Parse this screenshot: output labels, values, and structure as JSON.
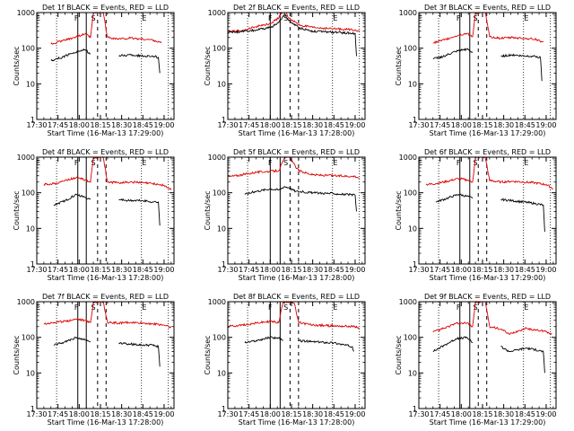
{
  "figure": {
    "x_ticks": [
      "17:30",
      "17:45",
      "18:00",
      "18:15",
      "18:30",
      "18:45",
      "19:00"
    ],
    "y_ticks": [
      "1",
      "10",
      "100",
      "1000"
    ],
    "ylabel": "Counts/sec",
    "xlabel": "Start Time (16-Mar-13 17:29:00)",
    "colors": {
      "events": "#000000",
      "lld": "#dd0000",
      "axes": "#000000"
    }
  },
  "chart_data": [
    {
      "type": "line",
      "title": "Det 1f BLACK = Events, RED = LLD",
      "ylabel": "Counts/sec",
      "xlabel": "Start Time (16-Mar-13 17:29:00)",
      "xlim": [
        "17:30",
        "19:07"
      ],
      "ylim": [
        1,
        1000
      ],
      "yscale": "log",
      "markers": [
        {
          "label": "E",
          "t": "17:31"
        },
        {
          "label": "F",
          "t": "17:58"
        },
        {
          "label": "S",
          "t": "18:10"
        },
        {
          "label": "E",
          "t": "18:46"
        }
      ],
      "solid_lines": [
        "17:59",
        "18:05"
      ],
      "dashed_lines": [
        "18:13",
        "18:19"
      ],
      "dotted_lines": [
        "17:44",
        "18:44",
        "19:03"
      ],
      "series": [
        {
          "name": "LLD",
          "x": [
            "17:40",
            "17:48",
            "17:56",
            "18:04",
            "18:08",
            "18:10",
            "18:14",
            "18:17",
            "18:20",
            "18:28",
            "18:36",
            "18:44",
            "18:52",
            "18:58"
          ],
          "values": [
            130,
            160,
            200,
            250,
            200,
            950,
            1000,
            1000,
            200,
            180,
            190,
            180,
            170,
            140
          ]
        },
        {
          "name": "Events",
          "x": [
            "17:40",
            "17:48",
            "17:56",
            "18:04",
            "18:08",
            "18:10",
            "18:14",
            "18:17",
            "18:20",
            "18:28",
            "18:36",
            "18:44",
            "18:52",
            "18:56",
            "18:57"
          ],
          "values": [
            45,
            55,
            75,
            90,
            70,
            null,
            null,
            null,
            null,
            60,
            65,
            60,
            60,
            55,
            20
          ]
        }
      ]
    },
    {
      "type": "line",
      "title": "Det 2f BLACK = Events, RED = LLD",
      "ylabel": "Counts/sec",
      "xlabel": "Start Time (16-Mar-13 17:28:00)",
      "xlim": [
        "17:30",
        "19:07"
      ],
      "ylim": [
        1,
        1000
      ],
      "yscale": "log",
      "markers": [
        {
          "label": "F",
          "t": "18:00"
        },
        {
          "label": "S",
          "t": "18:11"
        },
        {
          "label": "E",
          "t": "18:46"
        }
      ],
      "solid_lines": [
        "18:00",
        "18:07"
      ],
      "dashed_lines": [
        "18:14",
        "18:20"
      ],
      "dotted_lines": [
        "17:44",
        "18:44",
        "19:03"
      ],
      "series": [
        {
          "name": "LLD",
          "x": [
            "17:30",
            "17:40",
            "17:50",
            "18:00",
            "18:06",
            "18:10",
            "18:13",
            "18:16",
            "18:20",
            "18:30",
            "18:45",
            "19:00",
            "19:03"
          ],
          "values": [
            300,
            310,
            400,
            500,
            700,
            1400,
            700,
            600,
            450,
            380,
            350,
            330,
            300
          ]
        },
        {
          "name": "Events",
          "x": [
            "17:30",
            "17:40",
            "17:50",
            "18:00",
            "18:06",
            "18:10",
            "18:13",
            "18:16",
            "18:20",
            "18:30",
            "18:45",
            "19:00",
            "19:01"
          ],
          "values": [
            280,
            290,
            320,
            380,
            520,
            900,
            600,
            500,
            380,
            300,
            280,
            260,
            60
          ]
        }
      ]
    },
    {
      "type": "line",
      "title": "Det 3f BLACK = Events, RED = LLD",
      "ylabel": "Counts/sec",
      "xlabel": "Start Time (16-Mar-13 17:29:00)",
      "xlim": [
        "17:30",
        "19:07"
      ],
      "ylim": [
        1,
        1000
      ],
      "yscale": "log",
      "markers": [
        {
          "label": "E",
          "t": "17:31"
        },
        {
          "label": "F",
          "t": "17:58"
        },
        {
          "label": "S",
          "t": "18:10"
        },
        {
          "label": "E",
          "t": "18:46"
        }
      ],
      "solid_lines": [
        "17:59",
        "18:06"
      ],
      "dashed_lines": [
        "18:12",
        "18:18"
      ],
      "dotted_lines": [
        "17:44",
        "18:44",
        "19:03"
      ],
      "series": [
        {
          "name": "LLD",
          "x": [
            "17:40",
            "17:48",
            "17:56",
            "18:04",
            "18:08",
            "18:10",
            "18:14",
            "18:17",
            "18:20",
            "18:28",
            "18:36",
            "18:44",
            "18:52",
            "18:58"
          ],
          "values": [
            140,
            170,
            220,
            260,
            210,
            950,
            1000,
            1000,
            210,
            190,
            200,
            190,
            180,
            150
          ]
        },
        {
          "name": "Events",
          "x": [
            "17:40",
            "17:48",
            "17:56",
            "18:04",
            "18:08",
            "18:10",
            "18:14",
            "18:17",
            "18:20",
            "18:28",
            "18:36",
            "18:44",
            "18:52",
            "18:56",
            "18:57"
          ],
          "values": [
            50,
            60,
            80,
            95,
            75,
            null,
            null,
            null,
            null,
            60,
            65,
            60,
            60,
            55,
            12
          ]
        }
      ]
    },
    {
      "type": "line",
      "title": "Det 4f BLACK = Events, RED = LLD",
      "ylabel": "Counts/sec",
      "xlabel": "Start Time (16-Mar-13 17:28:00)",
      "xlim": [
        "17:30",
        "19:07"
      ],
      "ylim": [
        1,
        1000
      ],
      "yscale": "log",
      "markers": [
        {
          "label": "E",
          "t": "17:31"
        },
        {
          "label": "F",
          "t": "17:58"
        },
        {
          "label": "S",
          "t": "18:10"
        },
        {
          "label": "E",
          "t": "18:46"
        }
      ],
      "solid_lines": [
        "17:59",
        "18:05"
      ],
      "dashed_lines": [
        "18:13",
        "18:19"
      ],
      "dotted_lines": [
        "17:44",
        "18:44",
        "19:03"
      ],
      "series": [
        {
          "name": "LLD",
          "x": [
            "17:35",
            "17:42",
            "17:50",
            "17:58",
            "18:04",
            "18:08",
            "18:10",
            "18:14",
            "18:17",
            "18:20",
            "18:28",
            "18:36",
            "18:44",
            "18:52",
            "19:00",
            "19:05"
          ],
          "values": [
            170,
            180,
            220,
            270,
            230,
            200,
            950,
            1000,
            1000,
            200,
            190,
            200,
            190,
            180,
            160,
            120
          ]
        },
        {
          "name": "Events",
          "x": [
            "17:42",
            "17:50",
            "17:58",
            "18:04",
            "18:08",
            "18:10",
            "18:17",
            "18:20",
            "18:28",
            "18:36",
            "18:44",
            "18:52",
            "18:56",
            "18:57"
          ],
          "values": [
            45,
            60,
            90,
            75,
            65,
            null,
            null,
            null,
            65,
            60,
            60,
            55,
            55,
            12
          ]
        }
      ]
    },
    {
      "type": "line",
      "title": "Det 5f BLACK = Events, RED = LLD",
      "ylabel": "Counts/sec",
      "xlabel": "Start Time (16-Mar-13 17:28:00)",
      "xlim": [
        "17:30",
        "19:07"
      ],
      "ylim": [
        1,
        1000
      ],
      "yscale": "log",
      "markers": [
        {
          "label": "F",
          "t": "18:00"
        },
        {
          "label": "S",
          "t": "18:11"
        },
        {
          "label": "E",
          "t": "18:46"
        }
      ],
      "solid_lines": [
        "18:00",
        "18:07"
      ],
      "dashed_lines": [
        "18:14",
        "18:20"
      ],
      "dotted_lines": [
        "17:44",
        "18:44",
        "19:03"
      ],
      "series": [
        {
          "name": "LLD",
          "x": [
            "17:30",
            "17:40",
            "17:50",
            "18:00",
            "18:06",
            "18:10",
            "18:13",
            "18:16",
            "18:20",
            "18:30",
            "18:45",
            "19:00",
            "19:03"
          ],
          "values": [
            280,
            320,
            380,
            400,
            420,
            900,
            1100,
            700,
            420,
            320,
            300,
            290,
            260
          ]
        },
        {
          "name": "Events",
          "x": [
            "17:42",
            "17:50",
            "18:00",
            "18:06",
            "18:10",
            "18:13",
            "18:18",
            "18:30",
            "18:45",
            "19:00",
            "19:01"
          ],
          "values": [
            90,
            110,
            130,
            120,
            150,
            140,
            110,
            100,
            95,
            85,
            30
          ]
        }
      ]
    },
    {
      "type": "line",
      "title": "Det 6f BLACK = Events, RED = LLD",
      "ylabel": "Counts/sec",
      "xlabel": "Start Time (16-Mar-13 17:29:00)",
      "xlim": [
        "17:30",
        "19:07"
      ],
      "ylim": [
        1,
        1000
      ],
      "yscale": "log",
      "markers": [
        {
          "label": "E",
          "t": "17:31"
        },
        {
          "label": "F",
          "t": "17:58"
        },
        {
          "label": "S",
          "t": "18:10"
        },
        {
          "label": "E",
          "t": "18:46"
        }
      ],
      "solid_lines": [
        "17:59",
        "18:06"
      ],
      "dashed_lines": [
        "18:12",
        "18:18"
      ],
      "dotted_lines": [
        "17:44",
        "18:44",
        "19:03"
      ],
      "series": [
        {
          "name": "LLD",
          "x": [
            "17:35",
            "17:42",
            "17:50",
            "17:58",
            "18:04",
            "18:08",
            "18:10",
            "18:14",
            "18:17",
            "18:20",
            "18:28",
            "18:36",
            "18:44",
            "18:52",
            "19:00",
            "19:05"
          ],
          "values": [
            170,
            180,
            210,
            250,
            230,
            200,
            950,
            1000,
            1000,
            220,
            200,
            210,
            200,
            190,
            170,
            130
          ]
        },
        {
          "name": "Events",
          "x": [
            "17:42",
            "17:50",
            "17:58",
            "18:04",
            "18:08",
            "18:10",
            "18:17",
            "18:20",
            "18:28",
            "18:36",
            "18:44",
            "18:52",
            "18:58",
            "18:59"
          ],
          "values": [
            55,
            70,
            90,
            80,
            70,
            null,
            null,
            null,
            65,
            60,
            55,
            50,
            45,
            8
          ]
        }
      ]
    },
    {
      "type": "line",
      "title": "Det 7f BLACK = Events, RED = LLD",
      "ylabel": "Counts/sec",
      "xlabel": "Start Time (16-Mar-13 17:28:00)",
      "xlim": [
        "17:30",
        "19:07"
      ],
      "ylim": [
        1,
        1000
      ],
      "yscale": "log",
      "markers": [
        {
          "label": "E",
          "t": "17:31"
        },
        {
          "label": "F",
          "t": "17:58"
        },
        {
          "label": "S",
          "t": "18:10"
        },
        {
          "label": "E",
          "t": "18:46"
        }
      ],
      "solid_lines": [
        "17:59",
        "18:05"
      ],
      "dashed_lines": [
        "18:13",
        "18:19"
      ],
      "dotted_lines": [
        "17:44",
        "18:44",
        "19:03"
      ],
      "series": [
        {
          "name": "LLD",
          "x": [
            "17:35",
            "17:42",
            "17:50",
            "17:58",
            "18:04",
            "18:08",
            "18:10",
            "18:14",
            "18:17",
            "18:20",
            "18:28",
            "18:36",
            "18:44",
            "18:52",
            "19:00",
            "19:05"
          ],
          "values": [
            240,
            260,
            280,
            330,
            300,
            260,
            950,
            1000,
            1000,
            260,
            250,
            260,
            250,
            240,
            220,
            190
          ]
        },
        {
          "name": "Events",
          "x": [
            "17:42",
            "17:50",
            "17:58",
            "18:04",
            "18:08",
            "18:10",
            "18:17",
            "18:20",
            "18:28",
            "18:36",
            "18:44",
            "18:52",
            "18:56",
            "18:57"
          ],
          "values": [
            60,
            75,
            100,
            85,
            75,
            null,
            null,
            null,
            70,
            65,
            60,
            60,
            55,
            15
          ]
        }
      ]
    },
    {
      "type": "line",
      "title": "Det 8f BLACK = Events, RED = LLD",
      "ylabel": "Counts/sec",
      "xlabel": "Start Time (16-Mar-13 17:28:00)",
      "xlim": [
        "17:30",
        "19:07"
      ],
      "ylim": [
        1,
        1000
      ],
      "yscale": "log",
      "markers": [
        {
          "label": "F",
          "t": "18:00"
        },
        {
          "label": "S",
          "t": "18:11"
        },
        {
          "label": "E",
          "t": "18:46"
        }
      ],
      "solid_lines": [
        "18:00",
        "18:07"
      ],
      "dashed_lines": [
        "18:14",
        "18:20"
      ],
      "dotted_lines": [
        "17:44",
        "18:44",
        "19:03"
      ],
      "series": [
        {
          "name": "LLD",
          "x": [
            "17:30",
            "17:40",
            "17:50",
            "18:00",
            "18:06",
            "18:09",
            "18:11",
            "18:14",
            "18:17",
            "18:20",
            "18:30",
            "18:45",
            "19:00",
            "19:03"
          ],
          "values": [
            200,
            220,
            250,
            280,
            260,
            950,
            1000,
            1000,
            900,
            260,
            220,
            210,
            200,
            180
          ]
        },
        {
          "name": "Events",
          "x": [
            "17:42",
            "17:50",
            "18:00",
            "18:06",
            "18:09",
            "18:17",
            "18:20",
            "18:30",
            "18:45",
            "18:58",
            "18:59"
          ],
          "values": [
            70,
            80,
            100,
            95,
            80,
            null,
            80,
            75,
            70,
            55,
            40
          ]
        }
      ]
    },
    {
      "type": "line",
      "title": "Det 9f BLACK = Events, RED = LLD",
      "ylabel": "Counts/sec",
      "xlabel": "Start Time (16-Mar-13 17:29:00)",
      "xlim": [
        "17:30",
        "19:07"
      ],
      "ylim": [
        1,
        1000
      ],
      "yscale": "log",
      "markers": [
        {
          "label": "E",
          "t": "17:31"
        },
        {
          "label": "F",
          "t": "17:58"
        },
        {
          "label": "S",
          "t": "18:10"
        },
        {
          "label": "E",
          "t": "18:46"
        }
      ],
      "solid_lines": [
        "17:59",
        "18:06"
      ],
      "dashed_lines": [
        "18:12",
        "18:18"
      ],
      "dotted_lines": [
        "17:44",
        "18:44",
        "19:03"
      ],
      "series": [
        {
          "name": "LLD",
          "x": [
            "17:40",
            "17:48",
            "17:56",
            "18:04",
            "18:08",
            "18:10",
            "18:14",
            "18:17",
            "18:20",
            "18:28",
            "18:34",
            "18:40",
            "18:46",
            "18:52",
            "18:58",
            "19:04"
          ],
          "values": [
            140,
            180,
            240,
            250,
            200,
            950,
            1000,
            1000,
            200,
            170,
            120,
            150,
            180,
            160,
            150,
            130
          ]
        },
        {
          "name": "Events",
          "x": [
            "17:40",
            "17:48",
            "17:56",
            "18:04",
            "18:08",
            "18:10",
            "18:17",
            "18:20",
            "18:28",
            "18:34",
            "18:40",
            "18:46",
            "18:52",
            "18:58",
            "18:59"
          ],
          "values": [
            40,
            60,
            90,
            100,
            70,
            null,
            null,
            null,
            55,
            40,
            45,
            50,
            45,
            40,
            10
          ]
        }
      ]
    }
  ]
}
